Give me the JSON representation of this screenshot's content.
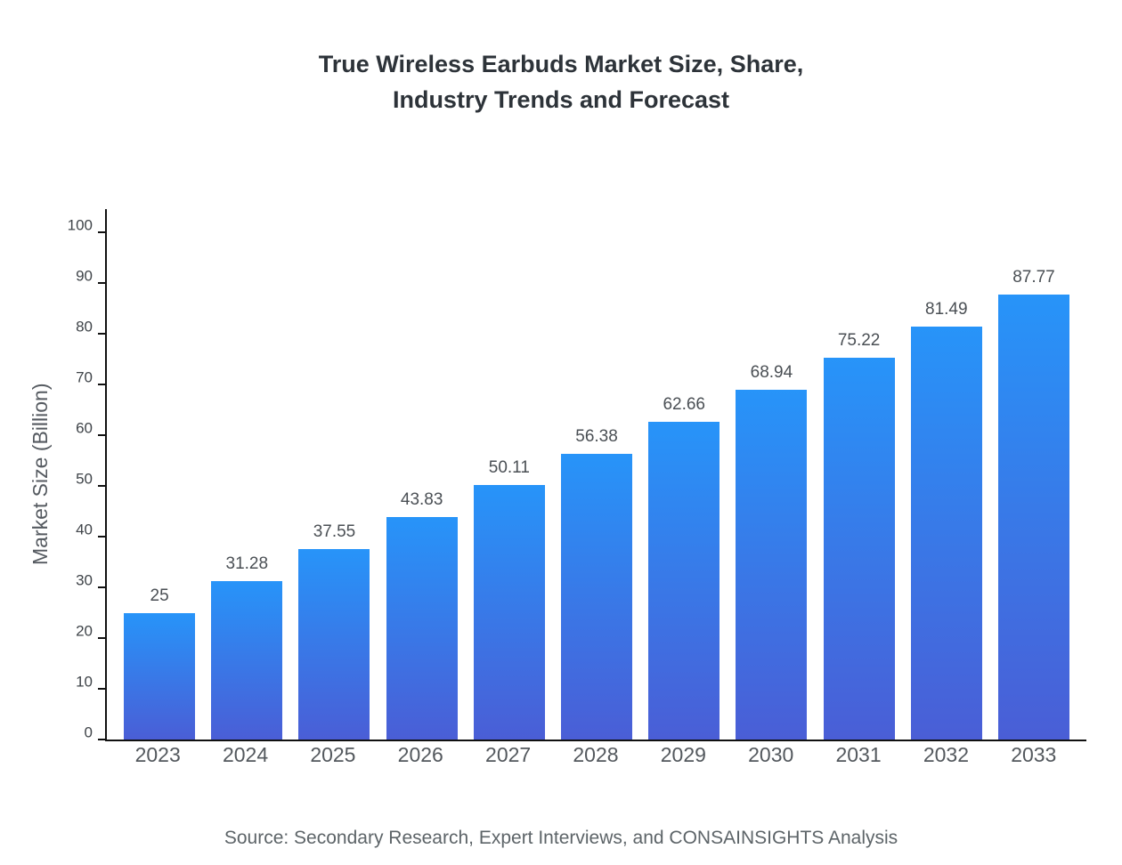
{
  "title": {
    "line1": "True Wireless Earbuds Market Size, Share,",
    "line2": "Industry Trends and Forecast"
  },
  "source": "Source: Secondary Research, Expert Interviews, and CONSAINSIGHTS Analysis",
  "chart_data": {
    "type": "bar",
    "title": "True Wireless Earbuds Market Size, Share, Industry Trends and Forecast",
    "categories": [
      "2023",
      "2024",
      "2025",
      "2026",
      "2027",
      "2028",
      "2029",
      "2030",
      "2031",
      "2032",
      "2033"
    ],
    "values": [
      25,
      31.28,
      37.55,
      43.83,
      50.11,
      56.38,
      62.66,
      68.94,
      75.22,
      81.49,
      87.77
    ],
    "value_labels": [
      "25",
      "31.28",
      "37.55",
      "43.83",
      "50.11",
      "56.38",
      "62.66",
      "68.94",
      "75.22",
      "81.49",
      "87.77"
    ],
    "xlabel": "",
    "ylabel": "Market Size (Billion)",
    "ylim": [
      0,
      100
    ],
    "ytick_step": 10,
    "grid": false,
    "legend": false,
    "bar_color_top": "#2794f9",
    "bar_color_bottom": "#4a5ed6",
    "axis_color": "#111111"
  }
}
